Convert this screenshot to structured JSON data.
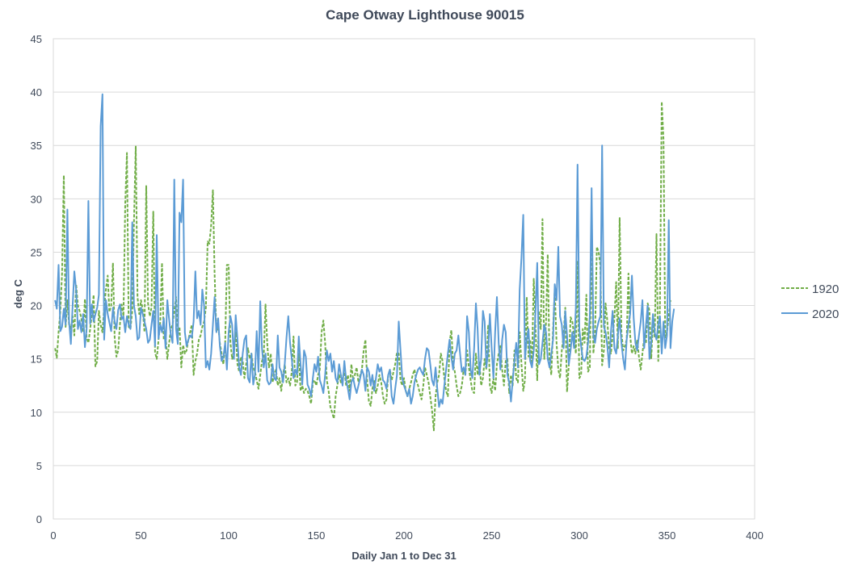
{
  "chart_data": {
    "type": "line",
    "title": "Cape Otway Lighthouse 90015",
    "xlabel": "Daily Jan 1 to Dec 31",
    "ylabel": "deg C",
    "xlim": [
      0,
      400
    ],
    "ylim": [
      0,
      45
    ],
    "xticks": [
      0,
      50,
      100,
      150,
      200,
      250,
      300,
      350,
      400
    ],
    "yticks": [
      0,
      5,
      10,
      15,
      20,
      25,
      30,
      35,
      40,
      45
    ],
    "grid": "horizontal",
    "legend_position": "right",
    "series": [
      {
        "name": "1920",
        "color": "#70ad47",
        "dash": "dashed",
        "values": [
          16.0,
          15.1,
          17.5,
          19.5,
          23.0,
          32.2,
          18.0,
          20.5,
          18.2,
          17.8,
          19.0,
          17.2,
          22.0,
          20.0,
          19.5,
          18.8,
          17.5,
          20.6,
          17.0,
          16.5,
          17.8,
          19.2,
          21.0,
          14.3,
          14.8,
          19.5,
          18.2,
          17.5,
          19.8,
          21.5,
          22.8,
          19.4,
          20.0,
          24.0,
          17.0,
          15.2,
          15.8,
          18.3,
          20.1,
          19.0,
          29.5,
          34.3,
          18.0,
          17.8,
          19.5,
          27.8,
          34.9,
          20.8,
          19.2,
          20.5,
          19.6,
          17.5,
          31.2,
          20.2,
          19.0,
          19.8,
          28.8,
          15.6,
          15.0,
          16.8,
          18.5,
          24.0,
          16.8,
          17.2,
          15.0,
          16.4,
          17.8,
          18.2,
          19.5,
          20.8,
          17.3,
          18.0,
          14.2,
          16.3,
          15.5,
          15.8,
          16.8,
          17.5,
          18.2,
          13.5,
          14.8,
          15.5,
          16.8,
          17.2,
          18.0,
          18.5,
          19.8,
          26.0,
          25.8,
          27.5,
          30.8,
          23.0,
          17.5,
          18.2,
          16.5,
          15.5,
          14.5,
          16.5,
          23.8,
          23.8,
          16.5,
          15.0,
          15.8,
          17.5,
          14.5,
          13.8,
          15.2,
          14.8,
          13.2,
          14.5,
          16.0,
          15.0,
          15.5,
          14.2,
          13.8,
          13.0,
          12.2,
          13.5,
          14.8,
          15.2,
          20.1,
          16.5,
          14.2,
          15.5,
          12.8,
          13.5,
          14.0,
          12.5,
          13.2,
          12.0,
          13.5,
          14.5,
          12.8,
          13.2,
          12.5,
          13.8,
          17.1,
          12.5,
          12.8,
          15.5,
          12.0,
          12.5,
          11.8,
          12.2,
          12.0,
          11.5,
          10.8,
          12.8,
          13.0,
          12.5,
          13.5,
          14.0,
          17.5,
          18.6,
          16.5,
          13.0,
          12.0,
          10.5,
          10.0,
          9.4,
          11.5,
          12.5,
          13.5,
          12.8,
          13.2,
          14.0,
          12.5,
          13.5,
          12.0,
          14.5,
          13.0,
          13.5,
          14.2,
          12.8,
          13.5,
          14.0,
          15.8,
          16.8,
          13.0,
          11.0,
          10.6,
          12.2,
          13.0,
          11.8,
          12.5,
          13.5,
          12.8,
          11.5,
          10.8,
          11.2,
          13.5,
          14.0,
          13.0,
          13.8,
          14.5,
          15.6,
          15.5,
          13.0,
          12.5,
          13.2,
          12.0,
          11.5,
          12.2,
          12.8,
          13.5,
          14.0,
          13.0,
          12.5,
          11.8,
          11.2,
          12.5,
          14.2,
          13.5,
          12.8,
          11.5,
          10.2,
          8.3,
          11.5,
          12.8,
          13.5,
          15.5,
          14.8,
          13.2,
          12.0,
          11.5,
          16.5,
          17.7,
          14.5,
          13.8,
          12.5,
          11.5,
          11.8,
          12.5,
          14.0,
          13.5,
          15.8,
          14.2,
          13.0,
          12.0,
          11.8,
          15.5,
          13.5,
          14.8,
          12.5,
          13.2,
          15.0,
          14.0,
          18.2,
          12.5,
          11.8,
          13.2,
          12.0,
          14.5,
          15.5,
          16.2,
          14.0,
          12.5,
          14.8,
          15.0,
          11.8,
          13.5,
          12.5,
          15.8,
          13.2,
          12.8,
          17.5,
          14.5,
          12.0,
          13.0,
          20.8,
          15.2,
          16.8,
          14.5,
          22.5,
          18.0,
          13.0,
          19.5,
          17.8,
          28.1,
          15.0,
          18.5,
          24.8,
          14.8,
          13.5,
          17.8,
          21.5,
          16.5,
          14.0,
          13.2,
          15.8,
          17.2,
          19.8,
          11.9,
          14.5,
          18.9,
          18.5,
          17.2,
          15.5,
          24.2,
          13.2,
          13.5,
          17.8,
          16.5,
          21.0,
          13.8,
          14.2,
          26.8,
          15.5,
          17.5,
          25.5,
          25.0,
          23.8,
          14.4,
          15.8,
          20.2,
          18.5,
          16.0,
          15.5,
          17.2,
          18.8,
          22.2,
          16.0,
          28.2,
          17.5,
          15.8,
          16.2,
          16.8,
          23.0,
          17.2,
          15.5,
          16.2,
          15.5,
          16.8,
          15.2,
          14.0,
          15.5,
          17.0,
          16.5,
          20.2,
          19.5,
          15.0,
          18.5,
          17.0,
          26.7,
          14.8,
          20.0,
          39.1,
          35.5,
          17.0,
          17.5,
          19.0,
          20.5
        ]
      },
      {
        "name": "2020",
        "color": "#5b9bd5",
        "dash": "solid",
        "values": [
          20.5,
          19.7,
          23.8,
          17.6,
          18.0,
          19.7,
          18.2,
          29.0,
          18.5,
          16.4,
          20.0,
          23.2,
          21.5,
          17.8,
          18.6,
          17.5,
          19.2,
          16.1,
          17.8,
          29.8,
          18.3,
          20.1,
          18.5,
          19.2,
          19.8,
          21.0,
          36.8,
          39.8,
          16.8,
          20.5,
          19.2,
          18.4,
          17.6,
          19.8,
          18.5,
          17.8,
          19.6,
          20.1,
          18.7,
          19.0,
          17.5,
          19.0,
          18.2,
          17.8,
          27.8,
          20.0,
          19.0,
          16.8,
          17.0,
          19.8,
          19.2,
          18.5,
          17.8,
          16.5,
          16.8,
          18.2,
          19.5,
          16.2,
          26.6,
          16.9,
          18.2,
          17.5,
          18.8,
          16.0,
          20.5,
          18.8,
          17.2,
          16.5,
          31.8,
          17.8,
          16.4,
          28.7,
          27.8,
          31.8,
          17.5,
          16.2,
          16.8,
          17.2,
          17.0,
          18.5,
          23.2,
          18.8,
          19.5,
          18.2,
          21.5,
          20.0,
          14.2,
          14.8,
          14.0,
          15.5,
          18.2,
          20.8,
          17.5,
          18.8,
          16.2,
          14.8,
          15.2,
          16.5,
          14.0,
          17.5,
          19.0,
          18.2,
          15.0,
          19.1,
          16.8,
          14.2,
          13.5,
          15.5,
          16.8,
          17.2,
          13.2,
          12.8,
          15.5,
          12.6,
          13.5,
          17.6,
          13.8,
          20.4,
          16.0,
          14.2,
          15.5,
          13.0,
          12.6,
          12.8,
          14.5,
          13.2,
          13.0,
          17.2,
          14.2,
          13.8,
          12.8,
          14.5,
          17.0,
          19.0,
          16.5,
          15.0,
          13.2,
          14.0,
          13.5,
          17.1,
          14.5,
          12.6,
          15.8,
          15.2,
          12.6,
          12.2,
          11.5,
          13.2,
          14.5,
          13.8,
          15.2,
          13.0,
          12.5,
          11.8,
          13.5,
          15.8,
          14.8,
          15.5,
          13.8,
          14.8,
          13.2,
          12.8,
          14.5,
          13.5,
          12.5,
          14.8,
          13.0,
          12.2,
          11.2,
          12.8,
          13.2,
          12.4,
          11.8,
          12.5,
          13.2,
          14.0,
          13.5,
          12.0,
          14.2,
          13.8,
          12.5,
          13.5,
          12.0,
          13.2,
          14.5,
          13.8,
          14.2,
          13.0,
          12.8,
          12.2,
          13.5,
          14.0,
          11.5,
          10.8,
          12.2,
          13.5,
          18.5,
          15.8,
          13.2,
          12.5,
          12.0,
          11.5,
          12.2,
          10.8,
          11.5,
          12.8,
          13.5,
          14.0,
          14.2,
          13.8,
          13.5,
          15.0,
          16.0,
          15.8,
          14.5,
          13.0,
          12.5,
          14.2,
          12.2,
          10.5,
          11.2,
          10.8,
          12.5,
          14.0,
          15.5,
          16.8,
          15.2,
          14.0,
          15.5,
          15.8,
          17.2,
          15.5,
          13.8,
          14.2,
          13.5,
          19.0,
          17.5,
          14.0,
          13.2,
          16.0,
          20.2,
          17.8,
          13.5,
          15.0,
          19.5,
          18.5,
          14.2,
          15.8,
          19.2,
          16.0,
          13.2,
          17.5,
          20.8,
          16.5,
          14.0,
          16.8,
          18.2,
          17.5,
          13.5,
          12.8,
          11.0,
          13.0,
          14.8,
          16.5,
          14.2,
          21.5,
          24.5,
          28.5,
          15.0,
          16.8,
          17.8,
          14.8,
          14.2,
          15.8,
          19.5,
          24.0,
          14.5,
          15.0,
          16.5,
          18.2,
          17.5,
          15.0,
          14.2,
          15.5,
          16.8,
          22.0,
          20.5,
          25.5,
          19.0,
          18.2,
          16.0,
          19.5,
          17.2,
          14.5,
          15.8,
          17.5,
          16.0,
          19.8,
          33.2,
          17.8,
          16.2,
          15.0,
          14.8,
          15.2,
          16.5,
          19.0,
          31.0,
          17.2,
          16.5,
          17.8,
          18.5,
          19.0,
          35.0,
          18.0,
          17.5,
          16.2,
          14.2,
          17.5,
          19.5,
          16.0,
          15.5,
          17.2,
          18.8,
          16.5,
          15.0,
          14.0,
          16.8,
          18.2,
          19.2,
          22.8,
          18.8,
          16.5,
          15.8,
          17.2,
          18.5,
          20.5,
          16.0,
          18.2,
          20.0,
          15.0,
          16.5,
          19.2,
          17.5,
          16.8,
          18.2,
          19.0,
          15.5,
          18.5,
          16.0,
          17.2,
          28.0,
          16.0,
          18.5,
          19.7
        ]
      }
    ]
  }
}
